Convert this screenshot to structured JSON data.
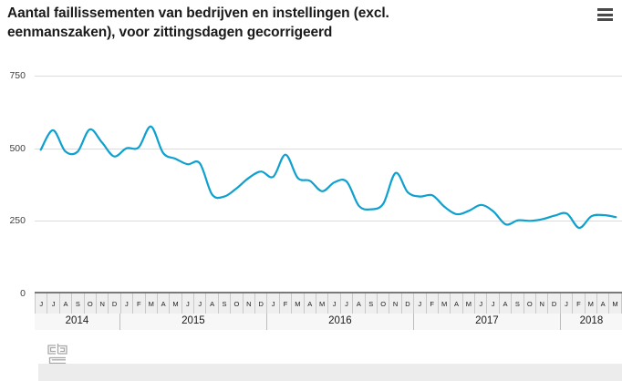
{
  "header": {
    "title_line1": "Aantal faillissementen van bedrijven en instellingen (excl.",
    "title_line2": "eenmanszaken), voor zittingsdagen gecorrigeerd",
    "menu_icon": "hamburger-menu-icon"
  },
  "footer": {
    "logo_icon": "cbs-logo"
  },
  "colors": {
    "line": "#0ea0ce",
    "grid": "#dcdcdc",
    "axis_band_bg": "#efefef",
    "axis_top_border": "#7a7a7a",
    "tick_text": "#404040",
    "footer_bar": "#ececec",
    "logo": "#a8a8a8",
    "menu_icon": "#4a4a4a"
  },
  "chart_data": {
    "type": "line",
    "title": "Aantal faillissementen van bedrijven en instellingen (excl. eenmanszaken), voor zittingsdagen gecorrigeerd",
    "ylim": [
      0,
      750
    ],
    "yticks": [
      0,
      250,
      500,
      750
    ],
    "grid": true,
    "x_months": [
      "J",
      "J",
      "A",
      "S",
      "O",
      "N",
      "D",
      "J",
      "F",
      "M",
      "A",
      "M",
      "J",
      "J",
      "A",
      "S",
      "O",
      "N",
      "D",
      "J",
      "F",
      "M",
      "A",
      "M",
      "J",
      "J",
      "A",
      "S",
      "O",
      "N",
      "D",
      "J",
      "F",
      "M",
      "A",
      "M",
      "J",
      "J",
      "A",
      "S",
      "O",
      "N",
      "D",
      "J",
      "F",
      "M",
      "A",
      "M"
    ],
    "x_years": [
      {
        "label": "2014",
        "months": 7
      },
      {
        "label": "2015",
        "months": 12
      },
      {
        "label": "2016",
        "months": 12
      },
      {
        "label": "2017",
        "months": 12
      },
      {
        "label": "2018",
        "months": 5
      }
    ],
    "series": [
      {
        "name": "Aantal faillissementen",
        "values": [
          495,
          562,
          490,
          488,
          565,
          520,
          472,
          500,
          503,
          575,
          484,
          464,
          445,
          448,
          341,
          334,
          362,
          398,
          420,
          402,
          478,
          398,
          388,
          352,
          383,
          385,
          302,
          290,
          310,
          415,
          348,
          334,
          338,
          298,
          273,
          285,
          305,
          282,
          238,
          252,
          250,
          256,
          268,
          275,
          226,
          266,
          270,
          263
        ]
      }
    ]
  }
}
